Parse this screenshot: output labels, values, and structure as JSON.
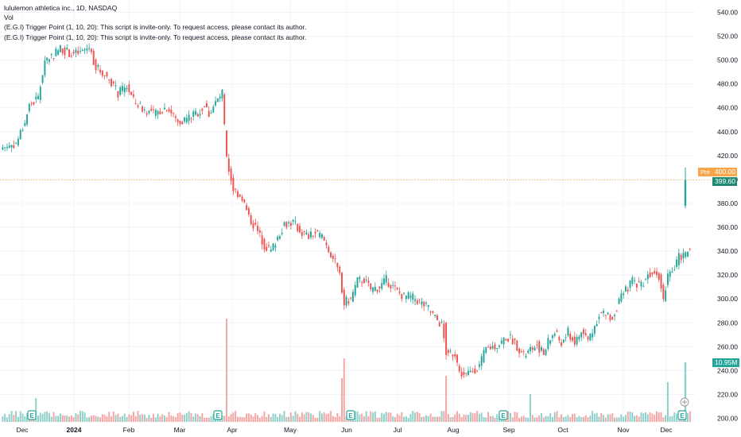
{
  "legend": {
    "title": "lululemon athletica inc., 1D, NASDAQ",
    "vol": "Vol",
    "script1": "(E.G.I) Trigger Point (1, 10, 20): This script is invite-only. To request access, please contact its author.",
    "script2": "(E.G.I) Trigger Point (1, 10, 20): This script is invite-only. To request access, please contact its author."
  },
  "badges": {
    "pre_label": "Pre",
    "pre_price": "400.00",
    "last_price": "399.60",
    "volume": "10.95M",
    "earnings_marker": "E"
  },
  "colors": {
    "up": "#26a69a",
    "down": "#ef5350",
    "vol_up": "#8fd1c9",
    "vol_down": "#f4a6a5",
    "pre": "#f7a64b",
    "grid": "#f0f3fa",
    "axis_text": "#131722"
  },
  "chart_data": {
    "type": "candlestick",
    "symbol": "lululemon athletica inc., 1D, NASDAQ",
    "ylim": [
      196,
      546
    ],
    "y_ticks": [
      200,
      220,
      240,
      260,
      280,
      300,
      320,
      340,
      360,
      380,
      400,
      420,
      440,
      460,
      480,
      500,
      520,
      540
    ],
    "x_tick_labels": [
      "Dec",
      "2024",
      "Feb",
      "Mar",
      "Apr",
      "May",
      "Jun",
      "Jul",
      "Aug",
      "Sep",
      "Oct",
      "Nov",
      "Dec"
    ],
    "close_path": [
      [
        0,
        427
      ],
      [
        6,
        430
      ],
      [
        10,
        448
      ],
      [
        12,
        462
      ],
      [
        16,
        468
      ],
      [
        19,
        500
      ],
      [
        23,
        505
      ],
      [
        26,
        510
      ],
      [
        31,
        505
      ],
      [
        35,
        506
      ],
      [
        39,
        511
      ],
      [
        42,
        494
      ],
      [
        46,
        488
      ],
      [
        49,
        482
      ],
      [
        52,
        472
      ],
      [
        56,
        478
      ],
      [
        59,
        466
      ],
      [
        64,
        458
      ],
      [
        69,
        455
      ],
      [
        74,
        461
      ],
      [
        79,
        448
      ],
      [
        84,
        452
      ],
      [
        89,
        457
      ],
      [
        91,
        462
      ],
      [
        93,
        455
      ],
      [
        96,
        464
      ],
      [
        99,
        472
      ],
      [
        101,
        416
      ],
      [
        104,
        392
      ],
      [
        108,
        385
      ],
      [
        111,
        368
      ],
      [
        114,
        360
      ],
      [
        118,
        345
      ],
      [
        121,
        340
      ],
      [
        124,
        352
      ],
      [
        127,
        363
      ],
      [
        131,
        364
      ],
      [
        134,
        357
      ],
      [
        138,
        352
      ],
      [
        141,
        355
      ],
      [
        144,
        352
      ],
      [
        146,
        345
      ],
      [
        149,
        334
      ],
      [
        152,
        320
      ],
      [
        154,
        297
      ],
      [
        157,
        300
      ],
      [
        160,
        315
      ],
      [
        163,
        316
      ],
      [
        166,
        308
      ],
      [
        170,
        310
      ],
      [
        173,
        316
      ],
      [
        175,
        312
      ],
      [
        178,
        306
      ],
      [
        181,
        302
      ],
      [
        183,
        302
      ],
      [
        186,
        300
      ],
      [
        189,
        296
      ],
      [
        192,
        292
      ],
      [
        195,
        284
      ],
      [
        198,
        278
      ],
      [
        200,
        255
      ],
      [
        204,
        255
      ],
      [
        206,
        238
      ],
      [
        209,
        236
      ],
      [
        212,
        240
      ],
      [
        215,
        244
      ],
      [
        218,
        258
      ],
      [
        221,
        260
      ],
      [
        224,
        262
      ],
      [
        227,
        268
      ],
      [
        230,
        266
      ],
      [
        233,
        258
      ],
      [
        235,
        252
      ],
      [
        238,
        257
      ],
      [
        241,
        262
      ],
      [
        244,
        253
      ],
      [
        246,
        264
      ],
      [
        249,
        272
      ],
      [
        252,
        262
      ],
      [
        255,
        272
      ],
      [
        258,
        263
      ],
      [
        261,
        272
      ],
      [
        264,
        266
      ],
      [
        267,
        277
      ],
      [
        269,
        288
      ],
      [
        272,
        287
      ],
      [
        275,
        284
      ],
      [
        278,
        298
      ],
      [
        281,
        307
      ],
      [
        284,
        315
      ],
      [
        288,
        312
      ],
      [
        291,
        320
      ],
      [
        294,
        325
      ],
      [
        296,
        320
      ],
      [
        298,
        300
      ],
      [
        300,
        321
      ],
      [
        303,
        325
      ],
      [
        305,
        335
      ],
      [
        308,
        337
      ],
      [
        310,
        343
      ]
    ],
    "premarket": {
      "open": 378,
      "high": 410,
      "low": 376,
      "close": 399.6
    }
  }
}
